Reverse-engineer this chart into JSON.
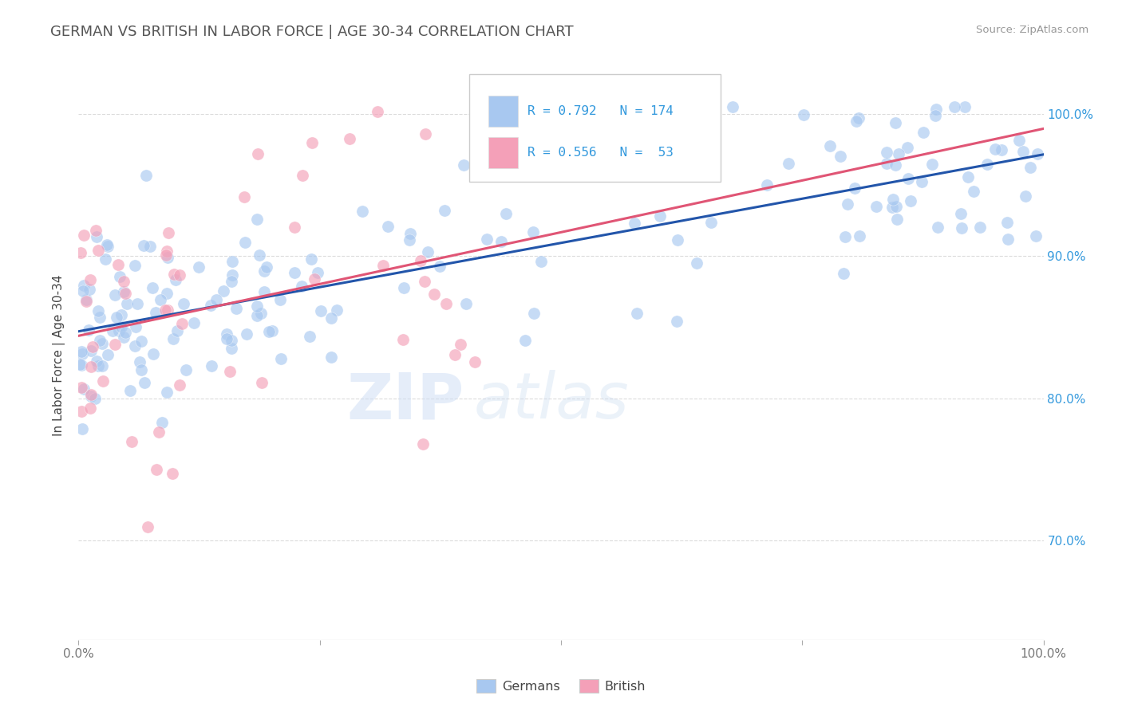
{
  "title": "GERMAN VS BRITISH IN LABOR FORCE | AGE 30-34 CORRELATION CHART",
  "source": "Source: ZipAtlas.com",
  "ylabel": "In Labor Force | Age 30-34",
  "xlim": [
    0.0,
    1.0
  ],
  "ylim": [
    0.63,
    1.03
  ],
  "yticks": [
    0.7,
    0.8,
    0.9,
    1.0
  ],
  "ytick_labels": [
    "70.0%",
    "80.0%",
    "90.0%",
    "100.0%"
  ],
  "german_color": "#a8c8f0",
  "british_color": "#f4a0b8",
  "german_line_color": "#2255aa",
  "british_line_color": "#e05575",
  "r_german": 0.792,
  "n_german": 174,
  "r_british": 0.556,
  "n_british": 53,
  "legend_label_german": "Germans",
  "legend_label_british": "British",
  "watermark_zip": "ZIP",
  "watermark_atlas": "atlas",
  "background_color": "#ffffff",
  "grid_color": "#cccccc",
  "title_color": "#555555",
  "axis_label_color": "#444444",
  "legend_r_color": "#3399dd",
  "right_tick_color": "#3399dd",
  "seed": 42
}
